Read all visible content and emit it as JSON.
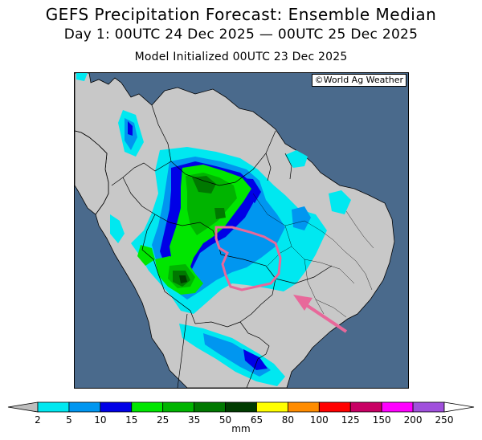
{
  "title": "GEFS Precipitation Forecast: Ensemble Median",
  "subtitle": "Day 1: 00UTC 24 Dec 2025 — 00UTC 25 Dec 2025",
  "model_init": "Model Initialized 00UTC 23 Dec 2025",
  "credit": "©World Ag Weather",
  "colorbar": {
    "units": "mm",
    "ticks": [
      "2",
      "5",
      "10",
      "15",
      "25",
      "35",
      "50",
      "65",
      "80",
      "100",
      "125",
      "150",
      "200",
      "250"
    ],
    "colors": [
      "#00e8f0",
      "#0096f0",
      "#0000e6",
      "#00e600",
      "#00b400",
      "#007800",
      "#003c00",
      "#ffff00",
      "#ff8c00",
      "#ff0000",
      "#c80064",
      "#ff00ff",
      "#a050dc"
    ],
    "under_color": "#bebebe",
    "over_color": "#ffffff"
  },
  "map_colors": {
    "ocean": "#4a6a8c",
    "land": "#c8c8c8",
    "annotation": "#e8689a"
  }
}
